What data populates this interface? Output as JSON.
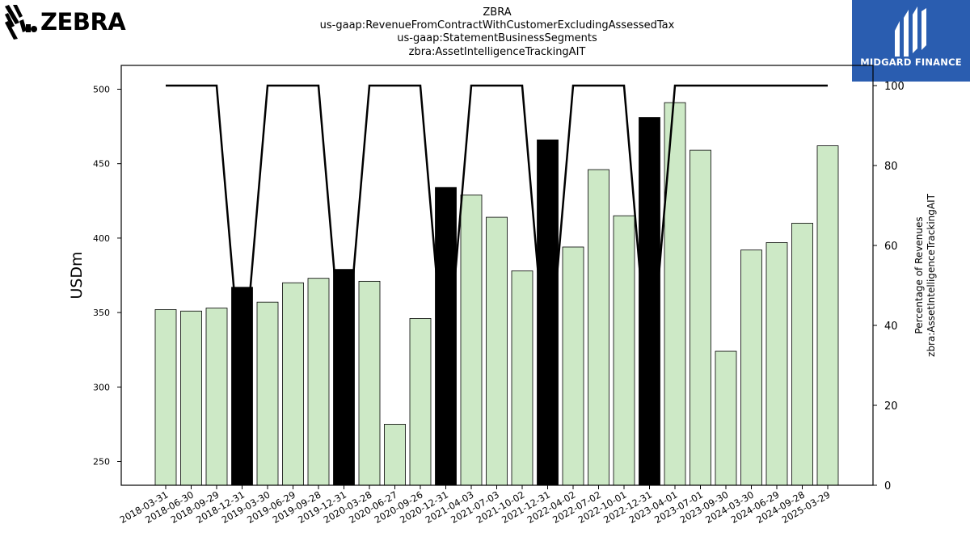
{
  "header": {
    "title_lines": [
      "ZBRA",
      "us-gaap:RevenueFromContractWithCustomerExcludingAssessedTax",
      "us-gaap:StatementBusinessSegments",
      "zbra:AssetIntelligenceTrackingAIT"
    ]
  },
  "logos": {
    "left_text": "ZEBRA",
    "right_text": "MIDGARD FINANCE"
  },
  "chart_data": {
    "type": "bar",
    "categories": [
      "2018-03-31",
      "2018-06-30",
      "2018-09-29",
      "2018-12-31",
      "2019-03-30",
      "2019-06-29",
      "2019-09-28",
      "2019-12-31",
      "2020-03-28",
      "2020-06-27",
      "2020-09-26",
      "2020-12-31",
      "2021-04-03",
      "2021-07-03",
      "2021-10-02",
      "2021-12-31",
      "2022-04-02",
      "2022-07-02",
      "2022-10-01",
      "2022-12-31",
      "2023-04-01",
      "2023-07-01",
      "2023-09-30",
      "2024-03-30",
      "2024-06-29",
      "2024-09-28",
      "2025-03-29"
    ],
    "series": [
      {
        "axis": "left",
        "values": [
          352,
          351,
          353,
          367,
          357,
          370,
          373,
          379,
          371,
          275,
          346,
          434,
          429,
          414,
          378,
          466,
          394,
          446,
          415,
          481,
          491,
          459,
          324,
          392,
          397,
          410,
          462
        ],
        "highlight": [
          false,
          false,
          false,
          true,
          false,
          false,
          false,
          true,
          false,
          false,
          false,
          true,
          false,
          false,
          false,
          true,
          false,
          false,
          false,
          true,
          false,
          false,
          false,
          false,
          false,
          false,
          false
        ]
      },
      {
        "axis": "right",
        "type": "line",
        "values": [
          100,
          100,
          100,
          25,
          100,
          100,
          100,
          25,
          100,
          100,
          100,
          25,
          100,
          100,
          100,
          25,
          100,
          100,
          100,
          25,
          100,
          100,
          100,
          100,
          100,
          100,
          100
        ]
      }
    ],
    "ylabel": "USDm",
    "ylabel_right": [
      "Percentage of Revenues",
      "zbra:AssetIntelligenceTrackingAIT"
    ],
    "ylim": [
      234,
      516
    ],
    "yticks": [
      250,
      300,
      350,
      400,
      450,
      500
    ],
    "ylim_right": [
      0,
      100
    ],
    "yticks_right": [
      0,
      20,
      40,
      60,
      80,
      100
    ],
    "colors": {
      "bar": "#cde9c6",
      "bar_highlight": "#000000",
      "line": "#000000"
    },
    "grid": false
  }
}
